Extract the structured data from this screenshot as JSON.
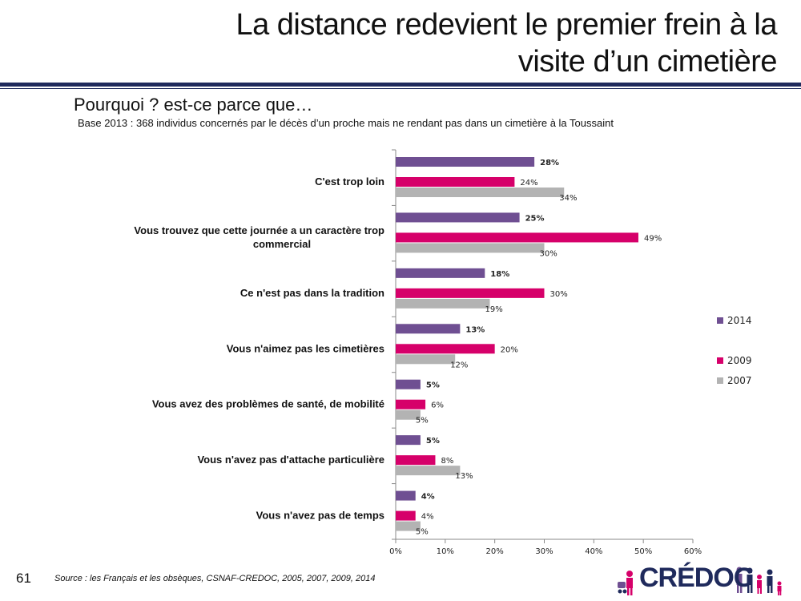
{
  "header": {
    "title_line1": "La distance redevient le premier frein à la",
    "title_line2": "visite d’un cimetière",
    "subtitle": "Pourquoi ? est-ce parce que…",
    "base": "Base 2013 :  368 individus concernés par le décès d’un proche mais ne rendant pas dans un cimetière à la Toussaint"
  },
  "footer": {
    "page_number": "61",
    "source": "Source : les Français et les obsèques, CSNAF-CREDOC, 2005, 2007, 2009, 2014",
    "logo_text": "CRÉDOC"
  },
  "colors": {
    "s2014": "#6f4f92",
    "s2009": "#d6006a",
    "s2007": "#b3b3b3",
    "rule": "#1f2a5c"
  },
  "chart_data": {
    "type": "bar",
    "orientation": "horizontal",
    "categories": [
      [
        "C'est trop loin"
      ],
      [
        "Vous trouvez que cette journée a un caractère trop",
        "commercial"
      ],
      [
        "Ce n'est pas dans la tradition"
      ],
      [
        "Vous n'aimez pas les cimetières"
      ],
      [
        "Vous avez des problèmes de santé, de mobilité"
      ],
      [
        "Vous n'avez pas d'attache particulière"
      ],
      [
        "Vous n'avez pas de temps"
      ]
    ],
    "series": [
      {
        "name": "2014",
        "values": [
          28,
          25,
          18,
          13,
          5,
          5,
          4
        ],
        "labels": [
          "28%",
          "25%",
          "18%",
          "13%",
          "5%",
          "5%",
          "4%"
        ]
      },
      {
        "name": "2009",
        "values": [
          24,
          49,
          30,
          20,
          6,
          8,
          4
        ],
        "labels": [
          "24%",
          "49%",
          "30%",
          "20%",
          "6%",
          "8%",
          "4%"
        ]
      },
      {
        "name": "2007",
        "values": [
          34,
          30,
          19,
          12,
          5,
          13,
          5
        ],
        "labels": [
          "34%",
          "30%",
          "19%",
          "12%",
          "5%",
          "13%",
          "5%"
        ]
      }
    ],
    "xlim": [
      0,
      60
    ],
    "xticks": [
      "0%",
      "10%",
      "20%",
      "30%",
      "40%",
      "50%",
      "60%"
    ],
    "legend_position": "right"
  }
}
